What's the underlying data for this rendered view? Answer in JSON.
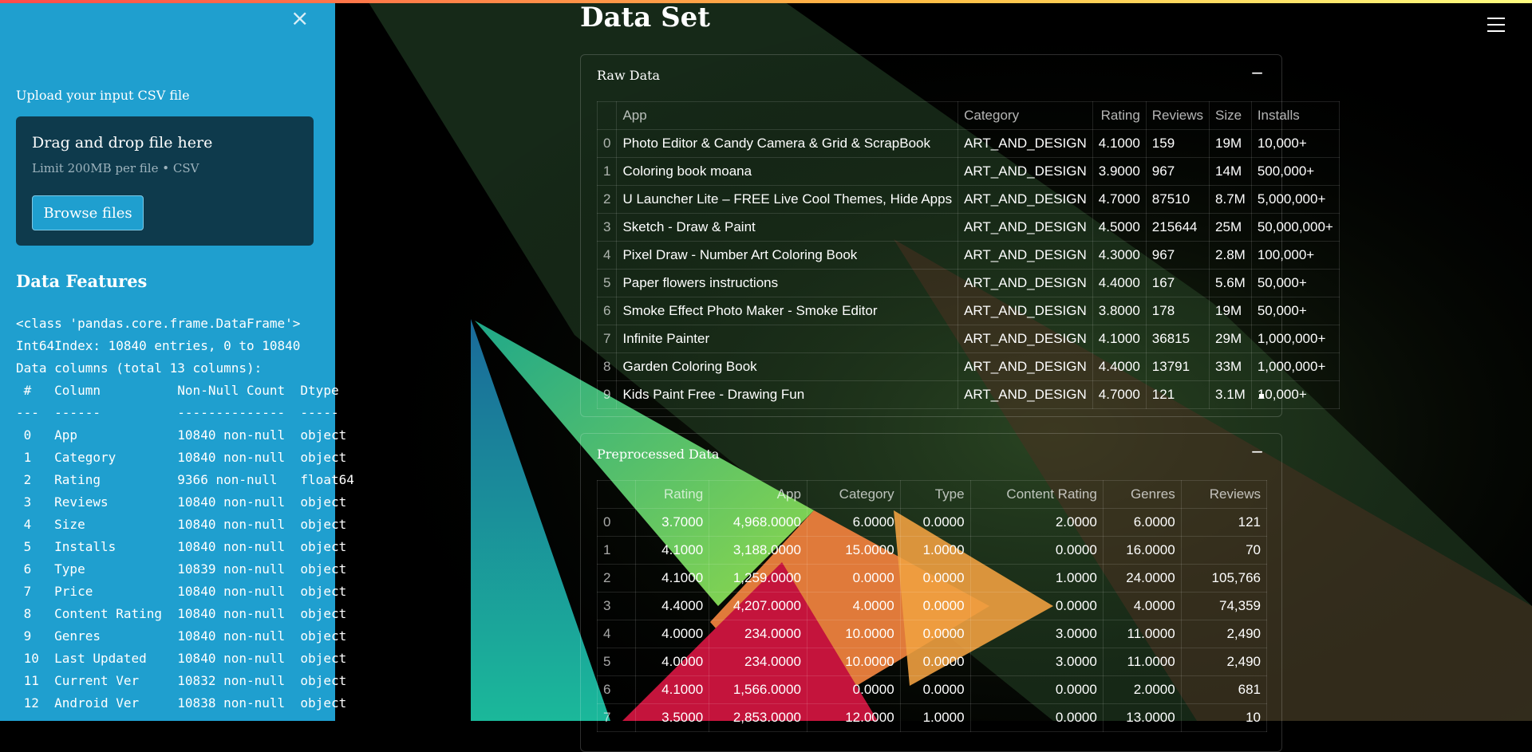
{
  "sidebar": {
    "close_glyph": "×",
    "upload_label": "Upload your input CSV file",
    "dropzone_title": "Drag and drop file here",
    "dropzone_limit": "Limit 200MB per file • CSV",
    "browse_label": "Browse files",
    "features_title": "Data Features",
    "info_lines": [
      "<class 'pandas.core.frame.DataFrame'>",
      "Int64Index: 10840 entries, 0 to 10840",
      "Data columns (total 13 columns):",
      " #   Column          Non-Null Count  Dtype",
      "---  ------          --------------  -----",
      " 0   App             10840 non-null  object",
      " 1   Category        10840 non-null  object",
      " 2   Rating          9366 non-null   float64",
      " 3   Reviews         10840 non-null  object",
      " 4   Size            10840 non-null  object",
      " 5   Installs        10840 non-null  object",
      " 6   Type            10839 non-null  object",
      " 7   Price           10840 non-null  object",
      " 8   Content Rating  10840 non-null  object",
      " 9   Genres          10840 non-null  object",
      " 10  Last Updated    10840 non-null  object",
      " 11  Current Ver     10832 non-null  object",
      " 12  Android Ver     10838 non-null  object"
    ]
  },
  "main": {
    "title": "Data Set",
    "raw": {
      "header": "Raw Data",
      "toggle": "−",
      "columns": [
        "",
        "App",
        "Category",
        "Rating",
        "Reviews",
        "Size",
        "Installs"
      ],
      "rows": [
        [
          "0",
          "Photo Editor & Candy Camera & Grid & ScrapBook",
          "ART_AND_DESIGN",
          "4.1000",
          "159",
          "19M",
          "10,000+"
        ],
        [
          "1",
          "Coloring book moana",
          "ART_AND_DESIGN",
          "3.9000",
          "967",
          "14M",
          "500,000+"
        ],
        [
          "2",
          "U Launcher Lite – FREE Live Cool Themes, Hide Apps",
          "ART_AND_DESIGN",
          "4.7000",
          "87510",
          "8.7M",
          "5,000,000+"
        ],
        [
          "3",
          "Sketch - Draw & Paint",
          "ART_AND_DESIGN",
          "4.5000",
          "215644",
          "25M",
          "50,000,000+"
        ],
        [
          "4",
          "Pixel Draw - Number Art Coloring Book",
          "ART_AND_DESIGN",
          "4.3000",
          "967",
          "2.8M",
          "100,000+"
        ],
        [
          "5",
          "Paper flowers instructions",
          "ART_AND_DESIGN",
          "4.4000",
          "167",
          "5.6M",
          "50,000+"
        ],
        [
          "6",
          "Smoke Effect Photo Maker - Smoke Editor",
          "ART_AND_DESIGN",
          "3.8000",
          "178",
          "19M",
          "50,000+"
        ],
        [
          "7",
          "Infinite Painter",
          "ART_AND_DESIGN",
          "4.1000",
          "36815",
          "29M",
          "1,000,000+"
        ],
        [
          "8",
          "Garden Coloring Book",
          "ART_AND_DESIGN",
          "4.4000",
          "13791",
          "33M",
          "1,000,000+"
        ],
        [
          "9",
          "Kids Paint Free - Drawing Fun",
          "ART_AND_DESIGN",
          "4.7000",
          "121",
          "3.1M",
          "10,000+"
        ]
      ]
    },
    "pre": {
      "header": "Preprocessed Data",
      "toggle": "−",
      "columns": [
        "",
        "Rating",
        "App",
        "Category",
        "Type",
        "Content Rating",
        "Genres",
        "Reviews"
      ],
      "rows": [
        [
          "0",
          "3.7000",
          "4,968.0000",
          "6.0000",
          "0.0000",
          "2.0000",
          "6.0000",
          "121"
        ],
        [
          "1",
          "4.1000",
          "3,188.0000",
          "15.0000",
          "1.0000",
          "0.0000",
          "16.0000",
          "70"
        ],
        [
          "2",
          "4.1000",
          "1,259.0000",
          "0.0000",
          "0.0000",
          "1.0000",
          "24.0000",
          "105,766"
        ],
        [
          "3",
          "4.4000",
          "4,207.0000",
          "4.0000",
          "0.0000",
          "0.0000",
          "4.0000",
          "74,359"
        ],
        [
          "4",
          "4.0000",
          "234.0000",
          "10.0000",
          "0.0000",
          "3.0000",
          "11.0000",
          "2,490"
        ],
        [
          "5",
          "4.0000",
          "234.0000",
          "10.0000",
          "0.0000",
          "3.0000",
          "11.0000",
          "2,490"
        ],
        [
          "6",
          "4.1000",
          "1,566.0000",
          "0.0000",
          "0.0000",
          "0.0000",
          "2.0000",
          "681"
        ],
        [
          "7",
          "3.5000",
          "2,853.0000",
          "12.0000",
          "1.0000",
          "0.0000",
          "13.0000",
          "10"
        ]
      ]
    }
  }
}
